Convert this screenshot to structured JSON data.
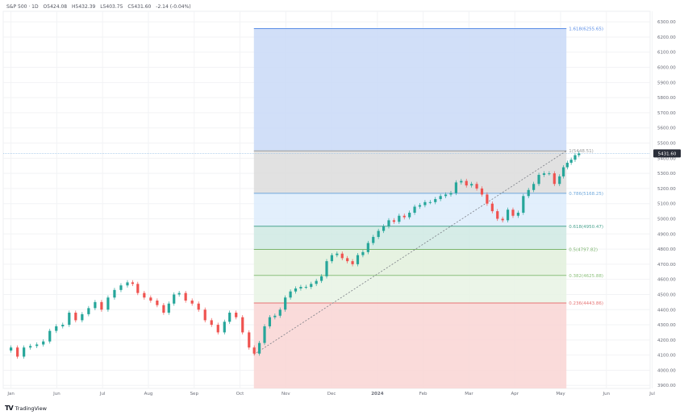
{
  "header": {
    "symbol": "S&P 500 · 1D",
    "open": "O5424.08",
    "high": "H5432.39",
    "low": "L5403.75",
    "close": "C5431.60",
    "change": "-2.14 (-0.04%)"
  },
  "brand": {
    "name": "TradingView"
  },
  "colors": {
    "up": "#26a69a",
    "down": "#ef5350",
    "zone_top": "#c9d9f7",
    "zone_grey": "#dcdcdc",
    "zone_lightblue": "#ddecfb",
    "zone_teal": "#cfe9e3",
    "zone_lightgreen": "#e2f0dc",
    "zone_paler_green": "#e8f3e4",
    "zone_red": "#f9d5d3",
    "crosshair": "#9fc5e8",
    "price_label": "#2a2e39"
  },
  "price_label": {
    "value": "5431.60"
  },
  "chart_data": {
    "type": "candlestick",
    "title": "",
    "x_axis_labels": [
      "Jan",
      "Jun",
      "Jul",
      "Aug",
      "Sep",
      "Oct",
      "Nov",
      "Dec",
      "2024",
      "Feb",
      "Mar",
      "Apr",
      "May",
      "Jun",
      "Jul"
    ],
    "y_axis_labels": [
      "6300.00",
      "6200.00",
      "6100.00",
      "6000.00",
      "5900.00",
      "5800.00",
      "5700.00",
      "5600.00",
      "5500.00",
      "5400.00",
      "5300.00",
      "5200.00",
      "5100.00",
      "5000.00",
      "4900.00",
      "4800.00",
      "4700.00",
      "4600.00",
      "4500.00",
      "4400.00",
      "4300.00",
      "4200.00",
      "4100.00",
      "4000.00",
      "3900.00"
    ],
    "ylim": [
      3880,
      6370
    ],
    "fib_levels": [
      {
        "label": "1.618(6255.65)",
        "value": 6255.65
      },
      {
        "label": "1(5448.51)",
        "value": 5448.51
      },
      {
        "label": "0.786(5168.25)",
        "value": 5168.25
      },
      {
        "label": "0.618(4950.47)",
        "value": 4950.47
      },
      {
        "label": "0.5(4797.82)",
        "value": 4797.82
      },
      {
        "label": "0.382(4625.88)",
        "value": 4625.88
      },
      {
        "label": "0.236(4443.86)",
        "value": 4443.86
      }
    ],
    "fib_base": 4103.78,
    "trend_line": [
      [
        0.3875,
        4103.78
      ],
      [
        0.8706,
        5448.51
      ]
    ],
    "closes": [
      [
        0.012,
        4150
      ],
      [
        0.022,
        4090
      ],
      [
        0.032,
        4150
      ],
      [
        0.042,
        4160
      ],
      [
        0.052,
        4170
      ],
      [
        0.062,
        4190
      ],
      [
        0.072,
        4260
      ],
      [
        0.082,
        4290
      ],
      [
        0.092,
        4300
      ],
      [
        0.102,
        4380
      ],
      [
        0.112,
        4330
      ],
      [
        0.122,
        4370
      ],
      [
        0.132,
        4410
      ],
      [
        0.142,
        4450
      ],
      [
        0.152,
        4400
      ],
      [
        0.162,
        4480
      ],
      [
        0.172,
        4530
      ],
      [
        0.182,
        4560
      ],
      [
        0.192,
        4580
      ],
      [
        0.2,
        4570
      ],
      [
        0.208,
        4510
      ],
      [
        0.218,
        4480
      ],
      [
        0.228,
        4460
      ],
      [
        0.238,
        4430
      ],
      [
        0.248,
        4380
      ],
      [
        0.256,
        4440
      ],
      [
        0.264,
        4500
      ],
      [
        0.272,
        4510
      ],
      [
        0.282,
        4460
      ],
      [
        0.292,
        4440
      ],
      [
        0.302,
        4400
      ],
      [
        0.312,
        4330
      ],
      [
        0.322,
        4300
      ],
      [
        0.332,
        4250
      ],
      [
        0.342,
        4320
      ],
      [
        0.35,
        4380
      ],
      [
        0.36,
        4350
      ],
      [
        0.37,
        4250
      ],
      [
        0.38,
        4150
      ],
      [
        0.388,
        4110
      ],
      [
        0.396,
        4180
      ],
      [
        0.404,
        4290
      ],
      [
        0.412,
        4350
      ],
      [
        0.42,
        4360
      ],
      [
        0.428,
        4400
      ],
      [
        0.436,
        4480
      ],
      [
        0.444,
        4520
      ],
      [
        0.452,
        4540
      ],
      [
        0.46,
        4550
      ],
      [
        0.468,
        4550
      ],
      [
        0.476,
        4570
      ],
      [
        0.484,
        4590
      ],
      [
        0.492,
        4620
      ],
      [
        0.5,
        4720
      ],
      [
        0.508,
        4760
      ],
      [
        0.516,
        4770
      ],
      [
        0.524,
        4740
      ],
      [
        0.532,
        4720
      ],
      [
        0.54,
        4700
      ],
      [
        0.548,
        4760
      ],
      [
        0.556,
        4780
      ],
      [
        0.564,
        4840
      ],
      [
        0.572,
        4880
      ],
      [
        0.58,
        4920
      ],
      [
        0.588,
        4950
      ],
      [
        0.596,
        4990
      ],
      [
        0.604,
        4980
      ],
      [
        0.612,
        5020
      ],
      [
        0.62,
        5010
      ],
      [
        0.628,
        5040
      ],
      [
        0.636,
        5080
      ],
      [
        0.644,
        5090
      ],
      [
        0.652,
        5110
      ],
      [
        0.66,
        5110
      ],
      [
        0.668,
        5130
      ],
      [
        0.676,
        5150
      ],
      [
        0.684,
        5160
      ],
      [
        0.692,
        5170
      ],
      [
        0.7,
        5240
      ],
      [
        0.708,
        5250
      ],
      [
        0.716,
        5220
      ],
      [
        0.724,
        5230
      ],
      [
        0.732,
        5200
      ],
      [
        0.74,
        5160
      ],
      [
        0.748,
        5100
      ],
      [
        0.756,
        5050
      ],
      [
        0.764,
        5000
      ],
      [
        0.772,
        4990
      ],
      [
        0.78,
        5060
      ],
      [
        0.788,
        5020
      ],
      [
        0.796,
        5040
      ],
      [
        0.804,
        5150
      ],
      [
        0.812,
        5190
      ],
      [
        0.82,
        5230
      ],
      [
        0.828,
        5290
      ],
      [
        0.836,
        5300
      ],
      [
        0.844,
        5300
      ],
      [
        0.852,
        5230
      ],
      [
        0.86,
        5280
      ],
      [
        0.866,
        5340
      ],
      [
        0.872,
        5370
      ],
      [
        0.878,
        5390
      ],
      [
        0.884,
        5420
      ],
      [
        0.89,
        5431
      ]
    ]
  }
}
